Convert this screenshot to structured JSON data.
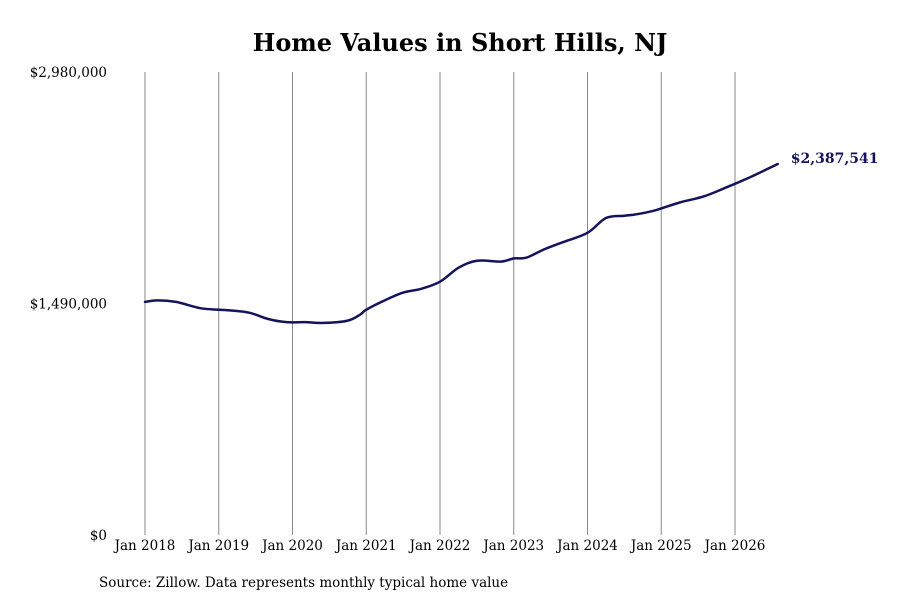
{
  "chart_data": {
    "type": "line",
    "title": "Home Values in Short Hills, NJ",
    "xlabel": "",
    "ylabel": "",
    "ylim": [
      0,
      2980000
    ],
    "y_tick_labels": [
      "$2,980,000",
      "$1,490,000",
      "$0"
    ],
    "y_tick_values": [
      2980000,
      1490000,
      0
    ],
    "x_tick_labels": [
      "Jan 2018",
      "Jan 2019",
      "Jan 2020",
      "Jan 2021",
      "Jan 2022",
      "Jan 2023",
      "Jan 2024",
      "Jan 2025",
      "Jan 2026"
    ],
    "x_tick_values": [
      2018.0,
      2019.0,
      2020.0,
      2021.0,
      2022.0,
      2023.0,
      2024.0,
      2025.0,
      2026.0
    ],
    "grid": "vertical",
    "series": [
      {
        "color": "#14145c",
        "x": [
          2018.0,
          2018.17,
          2018.42,
          2018.75,
          2019.0,
          2019.17,
          2019.42,
          2019.67,
          2019.92,
          2020.17,
          2020.42,
          2020.75,
          2020.92,
          2021.0,
          2021.25,
          2021.5,
          2021.75,
          2022.0,
          2022.25,
          2022.5,
          2022.83,
          2023.0,
          2023.17,
          2023.42,
          2023.67,
          2024.0,
          2024.25,
          2024.5,
          2024.67,
          2024.92,
          2025.25,
          2025.58,
          2025.92,
          2026.17,
          2026.58
        ],
        "values": [
          1500000,
          1510000,
          1500000,
          1460000,
          1450000,
          1445000,
          1430000,
          1390000,
          1370000,
          1370000,
          1365000,
          1380000,
          1420000,
          1450000,
          1510000,
          1560000,
          1585000,
          1630000,
          1720000,
          1765000,
          1760000,
          1780000,
          1785000,
          1840000,
          1885000,
          1945000,
          2040000,
          2055000,
          2065000,
          2090000,
          2140000,
          2180000,
          2245000,
          2295000,
          2387541
        ]
      }
    ],
    "end_label": "$2,387,541"
  },
  "source_note": "Source: Zillow. Data represents monthly typical home value"
}
